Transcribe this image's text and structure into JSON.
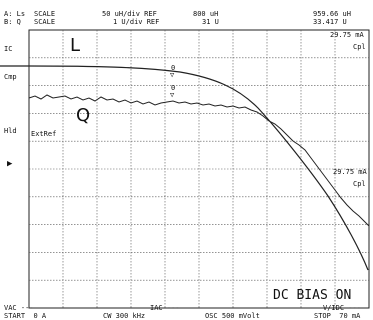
{
  "header": {
    "a_label": "A: Ls",
    "b_label": "B: Q",
    "scale_label_a": "SCALE",
    "scale_label_b": "SCALE",
    "scale_a": "50 uH/div REF",
    "scale_b": "1 U/div REF",
    "ref_a": "800 uH",
    "ref_b": "31 U",
    "marker_a": "959.66 uH",
    "marker_b": "33.417 U"
  },
  "side_labels": {
    "ic": "IC",
    "cmp": "Cmp",
    "hld": "Hld",
    "extref": "ExtRef",
    "pointer": "▶"
  },
  "graph": {
    "top_value": "29.75 mA",
    "top_mode": "Cpl",
    "mid_value": "29.75 mA",
    "mid_mode": "Cpl",
    "trace_l": "L",
    "trace_q": "Q",
    "marker_0_a": "0",
    "marker_0_b": "0",
    "marker_glyph_a": "▽",
    "marker_glyph_b": "▽",
    "banner": "DC BIAS ON"
  },
  "footer": {
    "vac": "VAC ---",
    "start": "START  0 A",
    "iac": "IAC ---",
    "cw": "CW 300 kHz",
    "osc": "OSC 500 mVolt",
    "vidc": "V/IDC ---",
    "stop": "STOP  70 mA"
  },
  "chart_data": {
    "type": "line",
    "x_start": "0 A",
    "x_stop": "70 mA",
    "series": [
      {
        "name": "L",
        "x_fraction": [
          0,
          0.1,
          0.2,
          0.3,
          0.4,
          0.5,
          0.6,
          0.7,
          0.8,
          0.9,
          1.0
        ],
        "y_fraction_from_top": [
          0.18,
          0.18,
          0.185,
          0.195,
          0.215,
          0.25,
          0.32,
          0.43,
          0.57,
          0.75,
          0.98
        ]
      },
      {
        "name": "Q",
        "x_fraction": [
          0,
          0.1,
          0.2,
          0.3,
          0.4,
          0.5,
          0.6,
          0.7,
          0.8,
          0.9,
          1.0
        ],
        "y_fraction_from_top": [
          0.28,
          0.285,
          0.29,
          0.295,
          0.305,
          0.315,
          0.33,
          0.37,
          0.44,
          0.56,
          0.72
        ]
      }
    ],
    "grid": true
  }
}
